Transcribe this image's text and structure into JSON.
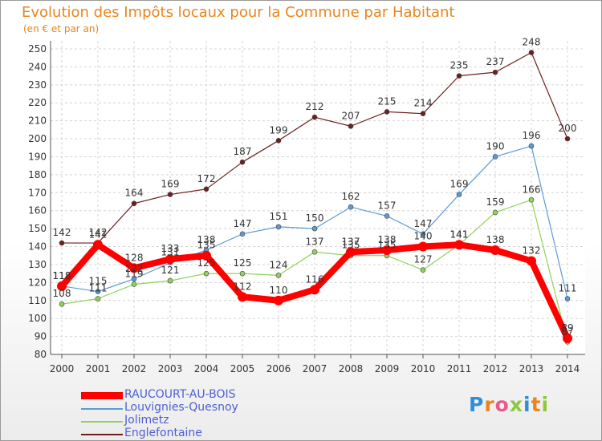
{
  "header": {
    "title": "Evolution des Impôts locaux pour la Commune par Habitant",
    "subtitle": "(en € et par an)"
  },
  "chart_data": {
    "type": "line",
    "title": "Evolution des Impôts locaux pour la Commune par Habitant",
    "subtitle": "(en € et par an)",
    "x": [
      "2000",
      "2001",
      "2002",
      "2003",
      "2004",
      "2005",
      "2006",
      "2007",
      "2008",
      "2009",
      "2010",
      "2011",
      "2012",
      "2013",
      "2014"
    ],
    "ylim": [
      80,
      250
    ],
    "yticks": [
      80,
      90,
      100,
      110,
      120,
      130,
      140,
      150,
      160,
      170,
      180,
      190,
      200,
      210,
      220,
      230,
      240,
      250
    ],
    "grid": true,
    "legend_position": "bottom-left",
    "series": [
      {
        "name": "Englefontaine",
        "color": "#6e1e1e",
        "values": [
          142,
          142,
          164,
          169,
          172,
          187,
          199,
          212,
          207,
          215,
          214,
          235,
          237,
          248,
          200
        ]
      },
      {
        "name": "Louvignies-Quesnoy",
        "color": "#5b9bd5",
        "values": [
          118,
          115,
          122,
          131,
          138,
          147,
          151,
          150,
          162,
          157,
          147,
          169,
          190,
          196,
          111
        ]
      },
      {
        "name": "Jolimetz",
        "color": "#8fd35a",
        "values": [
          108,
          111,
          119,
          121,
          125,
          125,
          124,
          137,
          135,
          135,
          127,
          141,
          159,
          166,
          87
        ]
      },
      {
        "name": "RAUCOURT-AU-BOIS",
        "color": "#ff0000",
        "values": [
          118,
          141,
          128,
          133,
          135,
          112,
          110,
          116,
          137,
          138,
          140,
          141,
          138,
          132,
          89
        ]
      }
    ]
  },
  "legend": {
    "items": [
      {
        "label": "RAUCOURT-AU-BOIS",
        "color": "#ff0000"
      },
      {
        "label": "Louvignies-Quesnoy",
        "color": "#5b9bd5"
      },
      {
        "label": "Jolimetz",
        "color": "#8fd35a"
      },
      {
        "label": "Englefontaine",
        "color": "#6e1e1e"
      }
    ]
  },
  "logo": {
    "letters": [
      "P",
      "r",
      "o",
      "x",
      "i",
      "t",
      "i"
    ],
    "colors": [
      "#2e8fd8",
      "#e8851f",
      "#e85a8a",
      "#8fc83c",
      "#2e8fd8",
      "#e8851f",
      "#8fc83c"
    ]
  }
}
